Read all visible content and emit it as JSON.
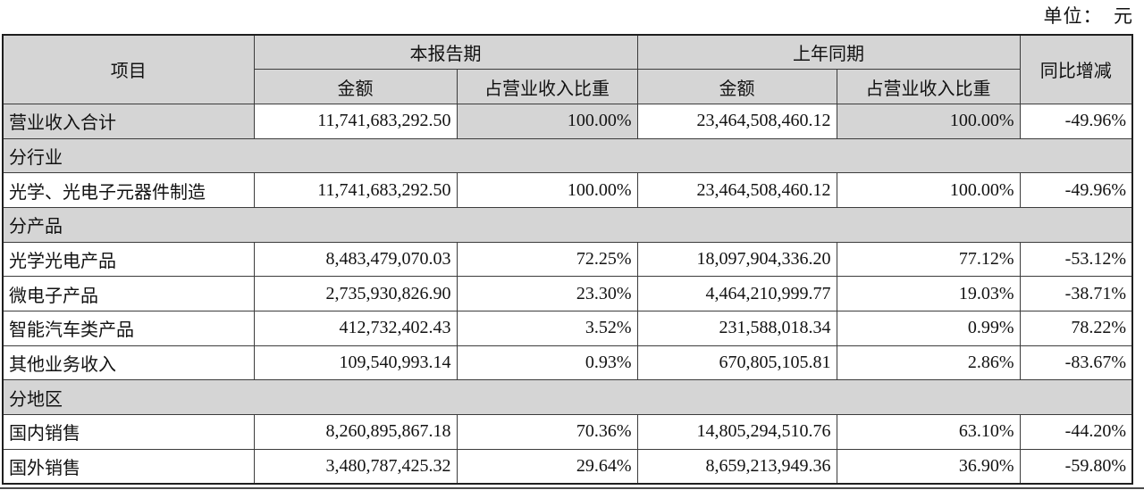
{
  "unit_label": "单位：  元",
  "table": {
    "header": {
      "item": "项目",
      "current_period": "本报告期",
      "prior_period": "上年同期",
      "yoy": "同比增减",
      "amount": "金额",
      "pct_of_revenue": "占营业收入比重"
    },
    "rows": [
      {
        "type": "data",
        "label": "营业收入合计",
        "shaded": true,
        "cells": [
          "11,741,683,292.50",
          "100.00%",
          "23,464,508,460.12",
          "100.00%",
          "-49.96%"
        ]
      },
      {
        "type": "section",
        "label": "分行业"
      },
      {
        "type": "data",
        "label": "光学、光电子元器件制造",
        "shaded": false,
        "cells": [
          "11,741,683,292.50",
          "100.00%",
          "23,464,508,460.12",
          "100.00%",
          "-49.96%"
        ]
      },
      {
        "type": "section",
        "label": "分产品"
      },
      {
        "type": "data",
        "label": "光学光电产品",
        "shaded": false,
        "cells": [
          "8,483,479,070.03",
          "72.25%",
          "18,097,904,336.20",
          "77.12%",
          "-53.12%"
        ]
      },
      {
        "type": "data",
        "label": "微电子产品",
        "shaded": false,
        "cells": [
          "2,735,930,826.90",
          "23.30%",
          "4,464,210,999.77",
          "19.03%",
          "-38.71%"
        ]
      },
      {
        "type": "data",
        "label": "智能汽车类产品",
        "shaded": false,
        "cells": [
          "412,732,402.43",
          "3.52%",
          "231,588,018.34",
          "0.99%",
          "78.22%"
        ]
      },
      {
        "type": "data",
        "label": "其他业务收入",
        "shaded": false,
        "cells": [
          "109,540,993.14",
          "0.93%",
          "670,805,105.81",
          "2.86%",
          "-83.67%"
        ]
      },
      {
        "type": "section",
        "label": "分地区"
      },
      {
        "type": "data",
        "label": "国内销售",
        "shaded": false,
        "cells": [
          "8,260,895,867.18",
          "70.36%",
          "14,805,294,510.76",
          "63.10%",
          "-44.20%"
        ]
      },
      {
        "type": "data",
        "label": "国外销售",
        "shaded": false,
        "cells": [
          "3,480,787,425.32",
          "29.64%",
          "8,659,213,949.36",
          "36.90%",
          "-59.80%"
        ]
      }
    ]
  },
  "colors": {
    "shaded_bg": "#d5d5d5",
    "border": "#3c3c3c",
    "text": "#121212"
  }
}
